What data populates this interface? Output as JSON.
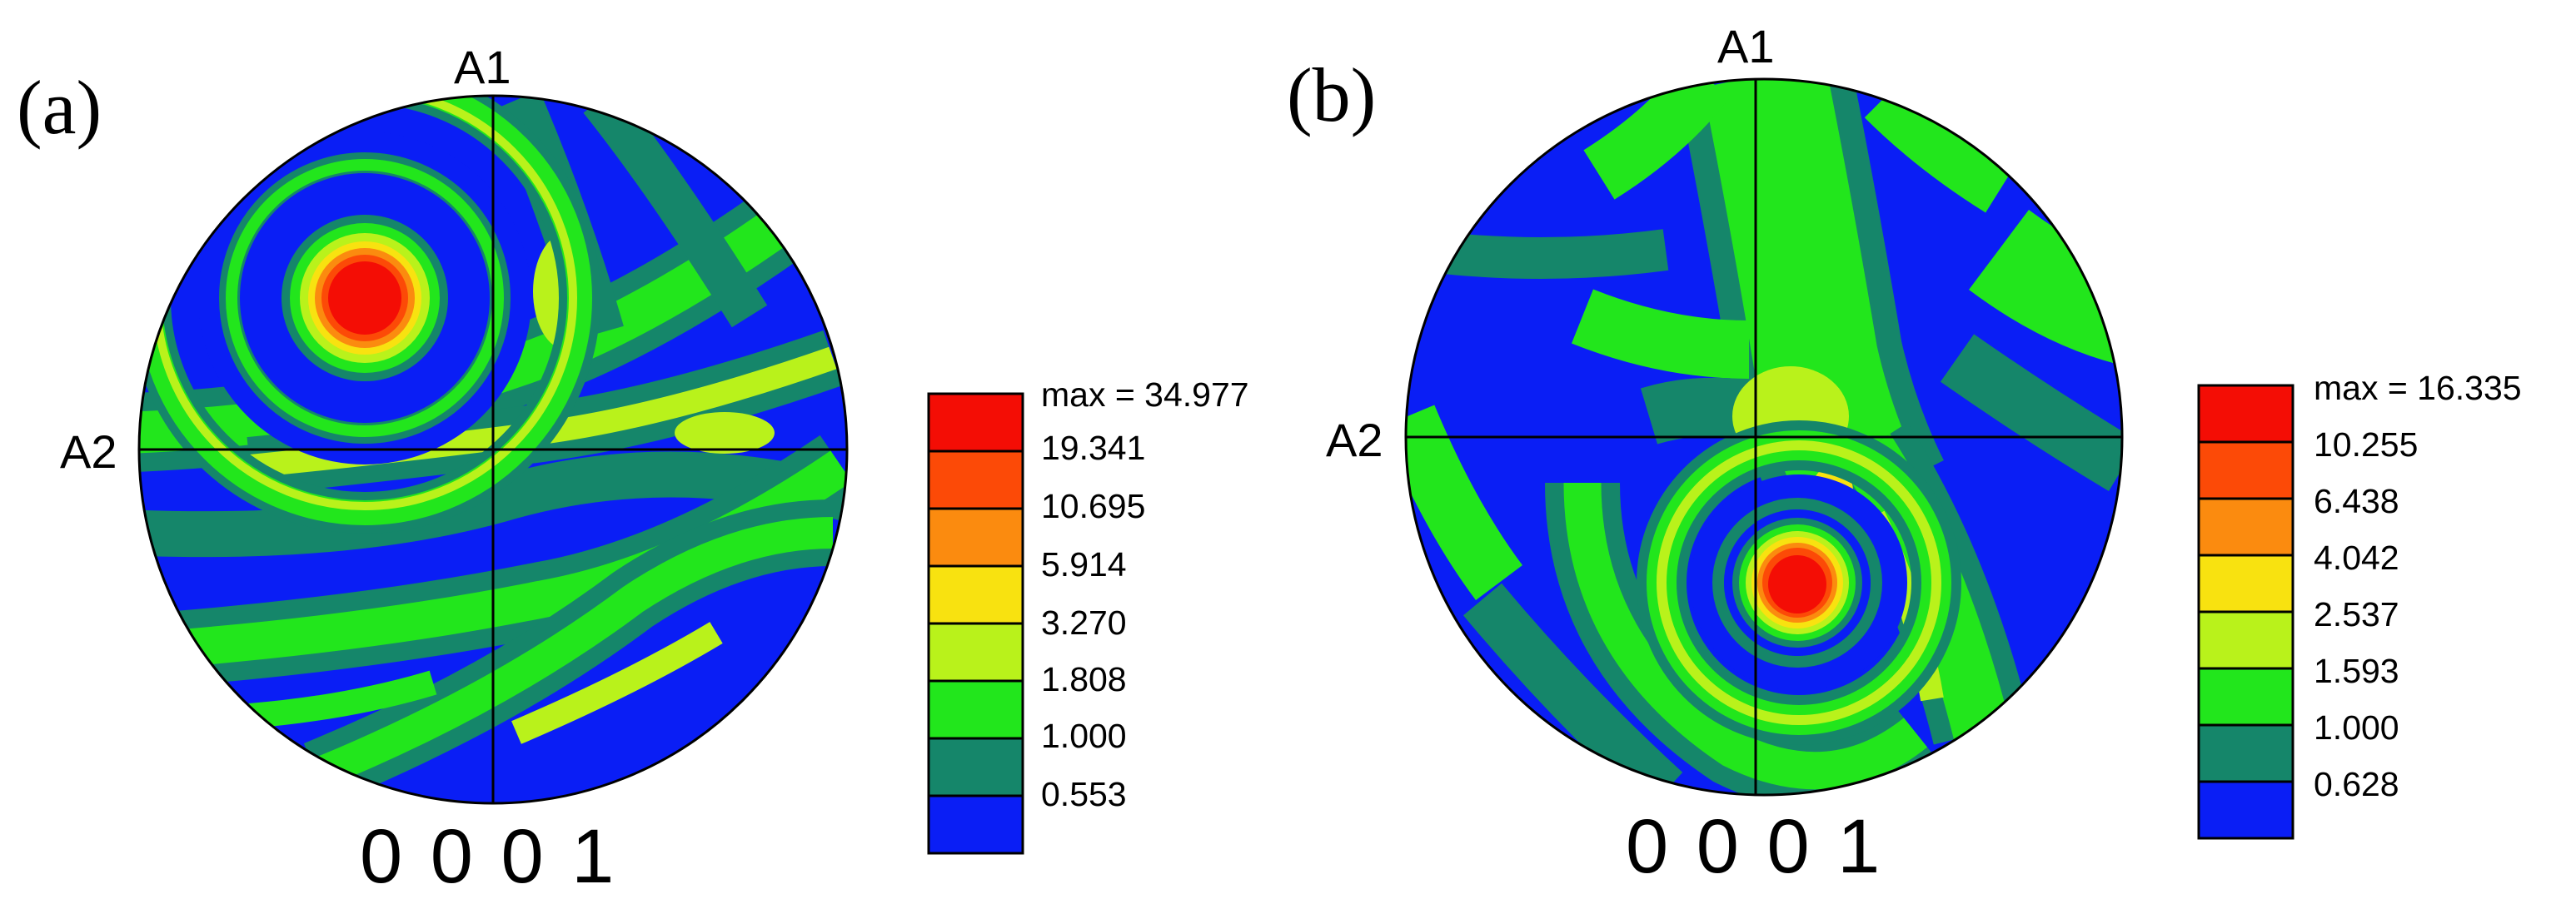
{
  "palette": {
    "blue": "#0a1ef5",
    "darkgreen": "#15866a",
    "green": "#22e61c",
    "yellowgreen": "#b9f21b",
    "yellow": "#f8e210",
    "orange": "#fb8b0f",
    "orangered": "#fc4a07",
    "red": "#f40d05"
  },
  "panels": [
    {
      "label": "(a)",
      "pole_label": "0 0 0 1",
      "axis_top": "A1",
      "axis_left": "A2",
      "legend": {
        "entries": [
          "max = 34.977",
          "19.341",
          "10.695",
          "5.914",
          "3.270",
          "1.808",
          "1.000",
          "0.553"
        ]
      }
    },
    {
      "label": "(b)",
      "pole_label": "0 0 0 1",
      "axis_top": "A1",
      "axis_left": "A2",
      "legend": {
        "entries": [
          "max = 16.335",
          "10.255",
          "6.438",
          "4.042",
          "2.537",
          "1.593",
          "1.000",
          "0.628"
        ]
      }
    }
  ]
}
